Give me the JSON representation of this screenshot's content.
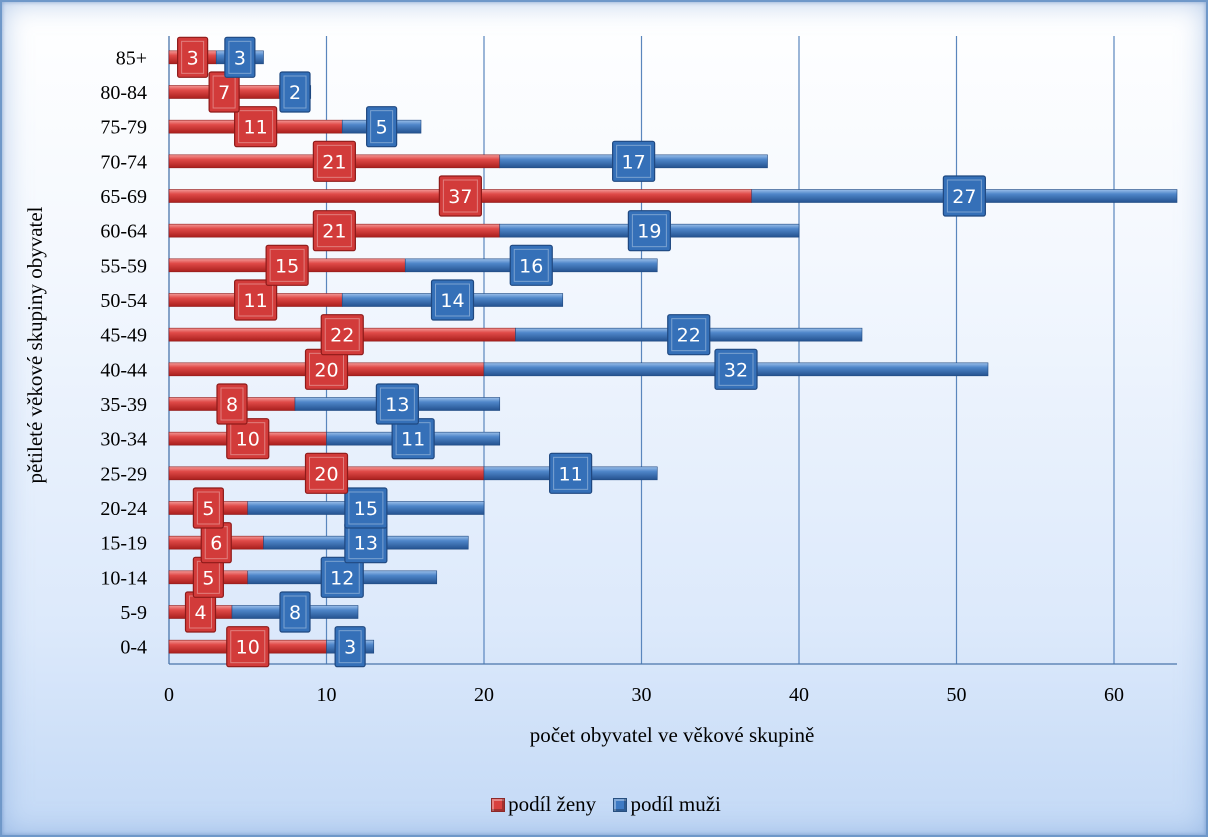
{
  "chart_data": {
    "type": "bar",
    "orientation": "horizontal",
    "stacked": true,
    "title": "",
    "xlabel": "počet obyvatel ve věkové skupině",
    "ylabel": "pětileté věkové skupiny obyvatel",
    "xlim": [
      0,
      64
    ],
    "x_ticks": [
      "0",
      "10",
      "20",
      "30",
      "40",
      "50",
      "60"
    ],
    "grid": "vertical major gridlines",
    "legend_position": "bottom",
    "categories": [
      "0-4",
      "5-9",
      "10-14",
      "15-19",
      "20-24",
      "25-29",
      "30-34",
      "35-39",
      "40-44",
      "45-49",
      "50-54",
      "55-59",
      "60-64",
      "65-69",
      "70-74",
      "75-79",
      "80-84",
      "85+"
    ],
    "series": [
      {
        "name": "podíl ženy",
        "color": "#d8403f",
        "values": [
          10,
          4,
          5,
          6,
          5,
          20,
          10,
          8,
          20,
          22,
          11,
          15,
          21,
          37,
          21,
          11,
          7,
          3
        ]
      },
      {
        "name": "podíl muži",
        "color": "#3d7ac4",
        "values": [
          3,
          8,
          12,
          13,
          15,
          11,
          11,
          13,
          32,
          22,
          14,
          16,
          19,
          27,
          17,
          5,
          2,
          3
        ]
      }
    ]
  }
}
